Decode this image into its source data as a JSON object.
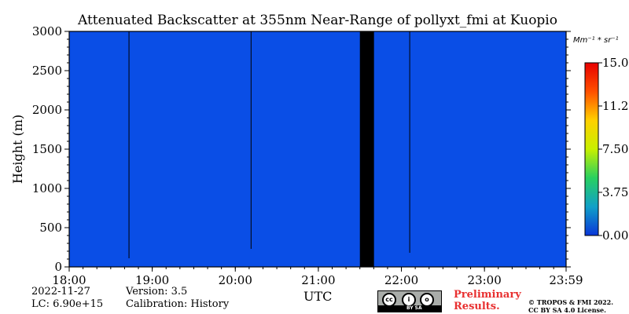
{
  "chart_data": {
    "type": "heatmap",
    "title": "Attenuated Backscatter at 355nm Near-Range of pollyxt_fmi at Kuopio",
    "xlabel": "UTC",
    "ylabel": "Height (m)",
    "x_ticks": [
      "18:00",
      "19:00",
      "20:00",
      "21:00",
      "22:00",
      "23:00",
      "23:59"
    ],
    "x_tick_hours": [
      18,
      19,
      20,
      21,
      22,
      23,
      23.983
    ],
    "xlim_hours": [
      18,
      23.983
    ],
    "y_ticks": [
      0,
      500,
      1000,
      1500,
      2000,
      2500,
      3000
    ],
    "ylim": [
      0,
      3000
    ],
    "background_value": 0.0,
    "background_color": "#0a4ee6",
    "gaps": [
      {
        "start_hour": 21.5,
        "end_hour": 21.67,
        "color": "#000000"
      }
    ],
    "thin_lines": [
      {
        "hour": 18.72,
        "bottom_m": 110
      },
      {
        "hour": 20.19,
        "bottom_m": 230
      },
      {
        "hour": 22.1,
        "bottom_m": 180
      }
    ],
    "colorbar": {
      "unit": "Mm⁻¹ * sr⁻¹",
      "ticks": [
        "0.00",
        "3.75",
        "7.50",
        "11.25",
        "15.00"
      ],
      "tick_values": [
        0,
        3.75,
        7.5,
        11.25,
        15
      ],
      "range": [
        0,
        15
      ],
      "colors": [
        "#0a36d8",
        "#10a0c8",
        "#28d060",
        "#c8f000",
        "#ffd000",
        "#ff5000",
        "#e80000"
      ]
    }
  },
  "info": {
    "date": "2022-11-27",
    "lc": "LC: 6.90e+15",
    "version": "Version: 3.5",
    "calibration": "Calibration: History"
  },
  "footer": {
    "preliminary": "Preliminary Results.",
    "copyright": "© TROPOS & FMI 2022. CC BY SA 4.0 License.",
    "cc_label": "BY   SA"
  }
}
